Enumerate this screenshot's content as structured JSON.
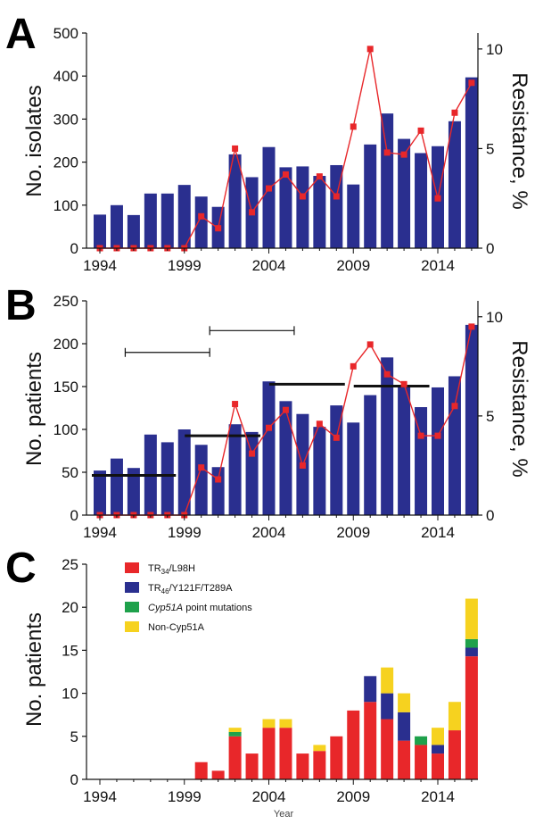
{
  "chart_data": [
    {
      "panel": "A",
      "type": "bar",
      "x": [
        1994,
        1995,
        1996,
        1997,
        1998,
        1999,
        2000,
        2001,
        2002,
        2003,
        2004,
        2005,
        2006,
        2007,
        2008,
        2009,
        2010,
        2011,
        2012,
        2013,
        2014,
        2015,
        2016
      ],
      "values": [
        78,
        100,
        77,
        127,
        127,
        147,
        120,
        96,
        218,
        165,
        235,
        188,
        190,
        168,
        193,
        148,
        241,
        313,
        254,
        221,
        237,
        295,
        397
      ],
      "resistance": [
        0,
        0,
        0,
        0,
        0,
        0,
        1.6,
        1.0,
        5.0,
        1.8,
        3.0,
        3.7,
        2.6,
        3.6,
        2.6,
        6.1,
        10.0,
        4.8,
        4.7,
        5.9,
        2.5,
        6.8,
        8.3
      ],
      "ylabel": "No. isolates",
      "y2label": "Resistance, %",
      "ylim": [
        0,
        500
      ],
      "y2lim": [
        0,
        10.8
      ],
      "yticks": [
        "0",
        "100",
        "200",
        "300",
        "400",
        "500"
      ],
      "y2ticks": [
        "0",
        "5",
        "10"
      ],
      "xticks": [
        "1994",
        "1999",
        "2004",
        "2009",
        "2014"
      ],
      "bar_color": "#2a2f8f",
      "line_color": "#e8272a"
    },
    {
      "panel": "B",
      "type": "bar",
      "x": [
        1994,
        1995,
        1996,
        1997,
        1998,
        1999,
        2000,
        2001,
        2002,
        2003,
        2004,
        2005,
        2006,
        2007,
        2008,
        2009,
        2010,
        2011,
        2012,
        2013,
        2014,
        2015,
        2016
      ],
      "values": [
        52,
        66,
        55,
        94,
        85,
        100,
        82,
        56,
        106,
        97,
        156,
        133,
        118,
        103,
        128,
        108,
        140,
        184,
        152,
        126,
        149,
        162,
        222
      ],
      "resistance": [
        0,
        0,
        0,
        0,
        0,
        0,
        2.4,
        1.8,
        5.6,
        3.1,
        4.4,
        5.3,
        2.5,
        4.6,
        3.9,
        7.5,
        8.6,
        7.1,
        6.6,
        4.0,
        4.0,
        5.5,
        9.5
      ],
      "ylabel": "No. patients",
      "y2label": "Resistance, %",
      "ylim": [
        0,
        250
      ],
      "y2lim": [
        0,
        10.8
      ],
      "yticks": [
        "0",
        "50",
        "100",
        "150",
        "200",
        "250"
      ],
      "y2ticks": [
        "0",
        "5",
        "10"
      ],
      "xticks": [
        "1994",
        "1999",
        "2004",
        "2009",
        "2014"
      ],
      "period_lines": [
        {
          "start": 1994,
          "end": 1998.5,
          "value": 2,
          "style": "thick"
        },
        {
          "start": 1999.5,
          "end": 2003.5,
          "value": 4,
          "style": "thick"
        },
        {
          "start": 2004.5,
          "end": 2008.5,
          "value": 6.6,
          "style": "thick"
        },
        {
          "start": 2009.5,
          "end": 2013.5,
          "value": 6.5,
          "style": "thick"
        },
        {
          "start": 1995.5,
          "end": 2000.5,
          "value": 8.2,
          "style": "thin"
        },
        {
          "start": 2000.5,
          "end": 2005.5,
          "value": 9.3,
          "style": "thin"
        }
      ],
      "bar_color": "#2a2f8f",
      "line_color": "#e8272a"
    },
    {
      "panel": "C",
      "type": "stacked_bar",
      "x": [
        1994,
        1995,
        1996,
        1997,
        1998,
        1999,
        2000,
        2001,
        2002,
        2003,
        2004,
        2005,
        2006,
        2007,
        2008,
        2009,
        2010,
        2011,
        2012,
        2013,
        2014,
        2015,
        2016
      ],
      "series": [
        {
          "name": "TR34/L98H",
          "label_main": "TR",
          "label_sub": "34",
          "label_rest": "/L98H",
          "color": "#e8272a",
          "values": [
            0,
            0,
            0,
            0,
            0,
            0,
            2,
            1,
            5,
            3,
            6,
            6,
            3,
            3.3,
            5,
            8,
            9,
            7,
            4.5,
            4,
            3,
            5.7,
            14.3
          ]
        },
        {
          "name": "TR46/Y121F/T289A",
          "label_main": "TR",
          "label_sub": "46",
          "label_rest": "/Y121F/T289A",
          "color": "#2a2f8f",
          "values": [
            0,
            0,
            0,
            0,
            0,
            0,
            0,
            0,
            0,
            0,
            0,
            0,
            0,
            0,
            0,
            0,
            3,
            3,
            3.3,
            0,
            1,
            0,
            1
          ]
        },
        {
          "name": "Cyp51A point mutations",
          "label_main": "Cyp51A",
          "label_rest": " point mutations",
          "color": "#1ea14b",
          "values": [
            0,
            0,
            0,
            0,
            0,
            0,
            0,
            0,
            0.5,
            0,
            0,
            0,
            0,
            0,
            0,
            0,
            0,
            0,
            0,
            1,
            0,
            0,
            1
          ]
        },
        {
          "name": "Non-Cyp51A",
          "label_main": "Non-Cyp51A",
          "label_rest": "",
          "color": "#f6d21f",
          "values": [
            0,
            0,
            0,
            0,
            0,
            0,
            0,
            0,
            0.5,
            0,
            1,
            1,
            0,
            0.7,
            0,
            0,
            0,
            3,
            2.2,
            0,
            2,
            3.3,
            4.7
          ]
        }
      ],
      "ylabel": "No. patients",
      "xlabel": "Year",
      "ylim": [
        0,
        25
      ],
      "yticks": [
        "0",
        "5",
        "10",
        "15",
        "20",
        "25"
      ],
      "xticks": [
        "1994",
        "1999",
        "2004",
        "2009",
        "2014"
      ]
    }
  ],
  "panel_labels": [
    "A",
    "B",
    "C"
  ]
}
